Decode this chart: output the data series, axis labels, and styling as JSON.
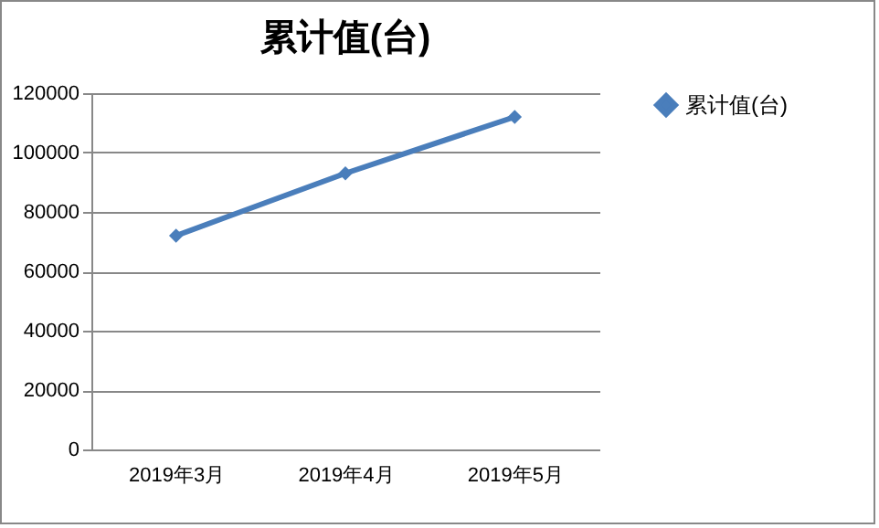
{
  "chart_data": {
    "type": "line",
    "title": "累计值(台)",
    "categories": [
      "2019年3月",
      "2019年4月",
      "2019年5月"
    ],
    "series": [
      {
        "name": "累计值(台)",
        "color": "#4a7ebb",
        "values": [
          72000,
          93000,
          112000
        ]
      }
    ],
    "ylim": [
      0,
      120000
    ],
    "yticks": [
      0,
      20000,
      40000,
      60000,
      80000,
      100000,
      120000
    ],
    "grid": "y",
    "legend": "right",
    "marker": "diamond",
    "line_style": "solid"
  }
}
